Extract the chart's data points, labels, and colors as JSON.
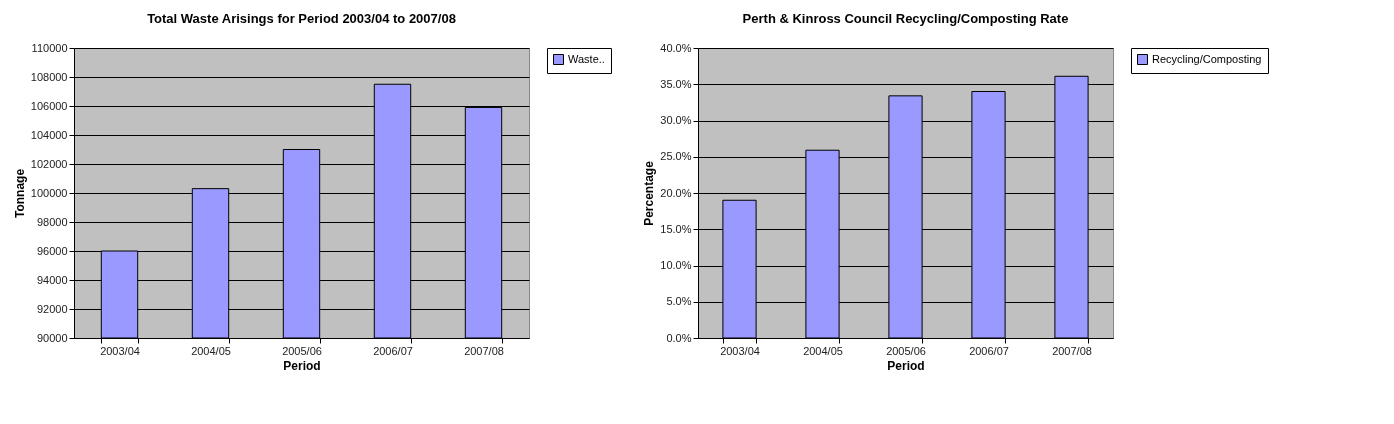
{
  "chart_data": [
    {
      "type": "bar",
      "title": "Total Waste Arisings for Period 2003/04 to 2007/08",
      "xlabel": "Period",
      "ylabel": "Tonnage",
      "categories": [
        "2003/04",
        "2004/05",
        "2005/06",
        "2006/07",
        "2007/08"
      ],
      "series": [
        {
          "name": "Waste..",
          "color": "#9999ff",
          "values": [
            96000,
            100300,
            103000,
            107500,
            105900
          ]
        }
      ],
      "ylim": [
        90000,
        110000
      ],
      "yticks": [
        90000,
        92000,
        94000,
        96000,
        98000,
        100000,
        102000,
        104000,
        106000,
        108000,
        110000
      ],
      "grid": "y",
      "legend": "right"
    },
    {
      "type": "bar",
      "title": "Perth & Kinross Council Recycling/Composting Rate",
      "xlabel": "Period",
      "ylabel": "Percentage",
      "categories": [
        "2003/04",
        "2004/05",
        "2005/06",
        "2006/07",
        "2007/08"
      ],
      "series": [
        {
          "name": "Recycling/Composting",
          "color": "#9999ff",
          "values": [
            19.0,
            25.9,
            33.4,
            34.0,
            36.1
          ]
        }
      ],
      "ylim": [
        0,
        40
      ],
      "yticks": [
        {
          "value": 0,
          "label": "0.0%"
        },
        {
          "value": 5,
          "label": "5.0%"
        },
        {
          "value": 10,
          "label": "10.0%"
        },
        {
          "value": 15,
          "label": "15.0%"
        },
        {
          "value": 20,
          "label": "20.0%"
        },
        {
          "value": 25,
          "label": "25.0%"
        },
        {
          "value": 30,
          "label": "30.0%"
        },
        {
          "value": 35,
          "label": "35.0%"
        },
        {
          "value": 40,
          "label": "40.0%"
        }
      ],
      "grid": "y",
      "legend": "right"
    }
  ]
}
